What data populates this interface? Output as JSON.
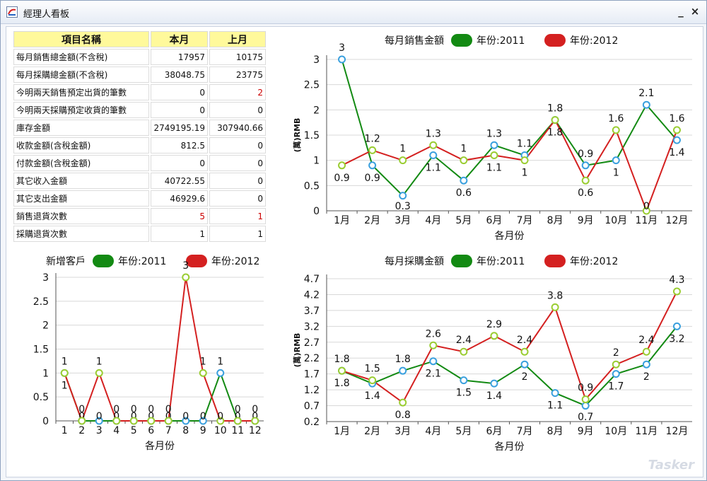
{
  "window": {
    "title": "經理人看板",
    "minimize_label": "_",
    "close_label": "×"
  },
  "table": {
    "headers": [
      "項目名稱",
      "本月",
      "上月"
    ],
    "rows": [
      {
        "label": "每月銷售總金額(不含稅)",
        "cur": "17957",
        "prev": "10175",
        "cur_red": false,
        "prev_red": false
      },
      {
        "label": "每月採購總金額(不含稅)",
        "cur": "38048.75",
        "prev": "23775",
        "cur_red": false,
        "prev_red": false
      },
      {
        "label": "今明兩天銷售預定出貨的筆數",
        "cur": "0",
        "prev": "2",
        "cur_red": false,
        "prev_red": true
      },
      {
        "label": "今明兩天採購預定收貨的筆數",
        "cur": "0",
        "prev": "0",
        "cur_red": false,
        "prev_red": false
      },
      {
        "label": "庫存金額",
        "cur": "2749195.19",
        "prev": "307940.66",
        "cur_red": false,
        "prev_red": false
      },
      {
        "label": "收款金額(含稅金額)",
        "cur": "812.5",
        "prev": "0",
        "cur_red": false,
        "prev_red": false
      },
      {
        "label": "付款金額(含稅金額)",
        "cur": "0",
        "prev": "0",
        "cur_red": false,
        "prev_red": false
      },
      {
        "label": "其它收入金額",
        "cur": "40722.55",
        "prev": "0",
        "cur_red": false,
        "prev_red": false
      },
      {
        "label": "其它支出金額",
        "cur": "46929.6",
        "prev": "0",
        "cur_red": false,
        "prev_red": false
      },
      {
        "label": "銷售退貨次數",
        "cur": "5",
        "prev": "1",
        "cur_red": true,
        "prev_red": true
      },
      {
        "label": "採購退貨次數",
        "cur": "1",
        "prev": "1",
        "cur_red": false,
        "prev_red": false
      }
    ]
  },
  "colors": {
    "series2011": "#138a13",
    "series2012": "#d42020",
    "marker2011": "#3aa0de",
    "marker2012": "#9acd32",
    "header_bg": "#fff99b",
    "grid": "#d8d8d8"
  },
  "watermark": "Tasker",
  "chart_data": [
    {
      "id": "sales",
      "type": "line",
      "title": "每月銷售金額",
      "xlabel": "各月份",
      "ylabel": "(萬)RMB",
      "categories": [
        "1月",
        "2月",
        "3月",
        "4月",
        "5月",
        "6月",
        "7月",
        "8月",
        "9月",
        "10月",
        "11月",
        "12月"
      ],
      "ylim": [
        0,
        3
      ],
      "yticks": [
        "0",
        "0.5",
        "1",
        "1.5",
        "2",
        "2.5",
        "3"
      ],
      "ytick_values": [
        0,
        0.5,
        1,
        1.5,
        2,
        2.5,
        3
      ],
      "legend_position": "top",
      "series": [
        {
          "name": "年份:2011",
          "values": [
            3,
            0.9,
            0.3,
            1.1,
            0.6,
            1.3,
            1.1,
            1.8,
            0.9,
            1,
            2.1,
            1.4
          ],
          "labels": [
            "3",
            "0.9",
            "0.3",
            "1.1",
            "0.6",
            "1.3",
            "1.1",
            "1.8",
            "0.9",
            "1",
            "2.1",
            "1.4"
          ]
        },
        {
          "name": "年份:2012",
          "values": [
            0.9,
            1.2,
            1,
            1.3,
            1,
            1.1,
            1,
            1.8,
            0.6,
            1.6,
            0,
            1.6
          ],
          "labels": [
            "0.9",
            "1.2",
            "1",
            "1.3",
            "1",
            "1.1",
            "1",
            "1.8",
            "0.6",
            "1.6",
            "0",
            "1.6"
          ]
        }
      ]
    },
    {
      "id": "customers",
      "type": "line",
      "title": "新增客戶",
      "xlabel": "各月份",
      "ylabel": "",
      "categories": [
        "1",
        "2",
        "3",
        "4",
        "5",
        "6",
        "7",
        "8",
        "9",
        "10",
        "11",
        "12"
      ],
      "ylim": [
        0,
        3
      ],
      "yticks": [
        "0",
        "0.5",
        "1",
        "1.5",
        "2",
        "2.5",
        "3"
      ],
      "ytick_values": [
        0,
        0.5,
        1,
        1.5,
        2,
        2.5,
        3
      ],
      "legend_position": "top",
      "series": [
        {
          "name": "年份:2011",
          "values": [
            1,
            0,
            0,
            0,
            0,
            0,
            0,
            0,
            0,
            1,
            0,
            0
          ],
          "labels": [
            "1",
            "0",
            "0",
            "0",
            "0",
            "0",
            "0",
            "0",
            "0",
            "1",
            "0",
            "0"
          ]
        },
        {
          "name": "年份:2012",
          "values": [
            1,
            0,
            1,
            0,
            0,
            0,
            0,
            3,
            1,
            0,
            0,
            0
          ],
          "labels": [
            "1",
            "0",
            "1",
            "0",
            "0",
            "0",
            "0",
            "3",
            "1",
            "0",
            "0",
            "0"
          ]
        }
      ]
    },
    {
      "id": "purchases",
      "type": "line",
      "title": "每月採購金額",
      "xlabel": "各月份",
      "ylabel": "(萬)RMB",
      "categories": [
        "1月",
        "2月",
        "3月",
        "4月",
        "5月",
        "6月",
        "7月",
        "8月",
        "9月",
        "10月",
        "11月",
        "12月"
      ],
      "ylim": [
        0.2,
        4.7
      ],
      "yticks": [
        "0.2",
        "0.7",
        "1.2",
        "1.7",
        "2.2",
        "2.7",
        "3.2",
        "3.7",
        "4.2",
        "4.7"
      ],
      "ytick_values": [
        0.2,
        0.7,
        1.2,
        1.7,
        2.2,
        2.7,
        3.2,
        3.7,
        4.2,
        4.7
      ],
      "legend_position": "top",
      "series": [
        {
          "name": "年份:2011",
          "values": [
            1.8,
            1.4,
            1.8,
            2.1,
            1.5,
            1.4,
            2,
            1.1,
            0.7,
            1.7,
            2,
            3.2
          ],
          "labels": [
            "1.8",
            "1.4",
            "1.8",
            "2.1",
            "1.5",
            "1.4",
            "2",
            "1.1",
            "0.7",
            "1.7",
            "2",
            "3.2"
          ]
        },
        {
          "name": "年份:2012",
          "values": [
            1.8,
            1.5,
            0.8,
            2.6,
            2.4,
            2.9,
            2.4,
            3.8,
            0.9,
            2,
            2.4,
            4.3
          ],
          "labels": [
            "1.8",
            "1.5",
            "0.8",
            "2.6",
            "2.4",
            "2.9",
            "2.4",
            "3.8",
            "0.9",
            "2",
            "2.4",
            "4.3"
          ]
        }
      ]
    }
  ]
}
